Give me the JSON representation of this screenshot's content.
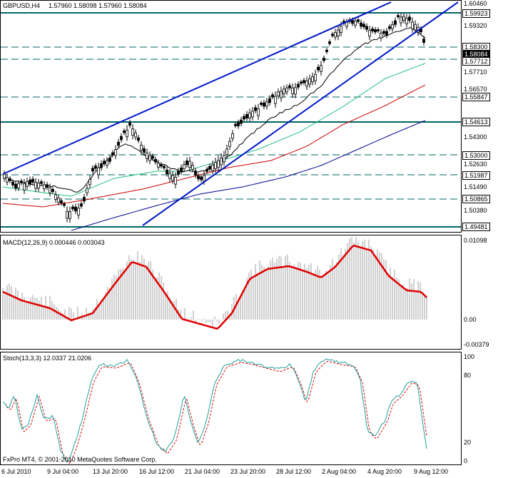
{
  "header": {
    "symbol": "GBPUSD,H4",
    "ohlc": "1.57960 1.58098 1.57960 1.58084"
  },
  "price_axis": {
    "labels": [
      "1.60460",
      "1.59320",
      "1.57710",
      "1.56570",
      "1.54300",
      "1.52630",
      "1.51490",
      "1.50380"
    ],
    "boxes": [
      {
        "text": "1.59923",
        "style": "box"
      },
      {
        "text": "1.58300",
        "style": "box"
      },
      {
        "text": "1.58084",
        "style": "dark"
      },
      {
        "text": "1.57712",
        "style": "box"
      },
      {
        "text": "1.55847",
        "style": "box"
      },
      {
        "text": "1.54613",
        "style": "box"
      },
      {
        "text": "1.53000",
        "style": "box"
      },
      {
        "text": "1.51987",
        "style": "box"
      },
      {
        "text": "1.50865",
        "style": "box"
      },
      {
        "text": "1.49481",
        "style": "box"
      }
    ]
  },
  "macd": {
    "title": "MACD(12,26,9) 0.000446 0.003043",
    "axis": [
      "0.01098",
      "0.00",
      "-0.00379"
    ]
  },
  "stoch": {
    "title": "Stoch(13,3,3) 12.0337 21.0206",
    "axis": [
      "100",
      "80",
      "20",
      "0"
    ]
  },
  "copyright": "FxPro MT4, © 2001-2010 MetaQuotes Software Corp.",
  "time_axis": [
    "6 Jul 2010",
    "9 Jul 04:00",
    "13 Jul 20:00",
    "16 Jul 12:00",
    "21 Jul 04:00",
    "23 Jul 20:00",
    "28 Jul 12:00",
    "2 Aug 04:00",
    "4 Aug 20:00",
    "9 Aug 12:00"
  ],
  "colors": {
    "candles": "#000000",
    "trendline": "#0018c8",
    "hlines": "#006666",
    "ma_black": "#000000",
    "ma_green": "#20c080",
    "ma_red": "#d00000",
    "ma_blue": "#000090",
    "macd_signal": "#e00000",
    "macd_hist": "#a0a0a0",
    "stoch_main": "#20a0a0",
    "stoch_signal": "#e00000"
  }
}
